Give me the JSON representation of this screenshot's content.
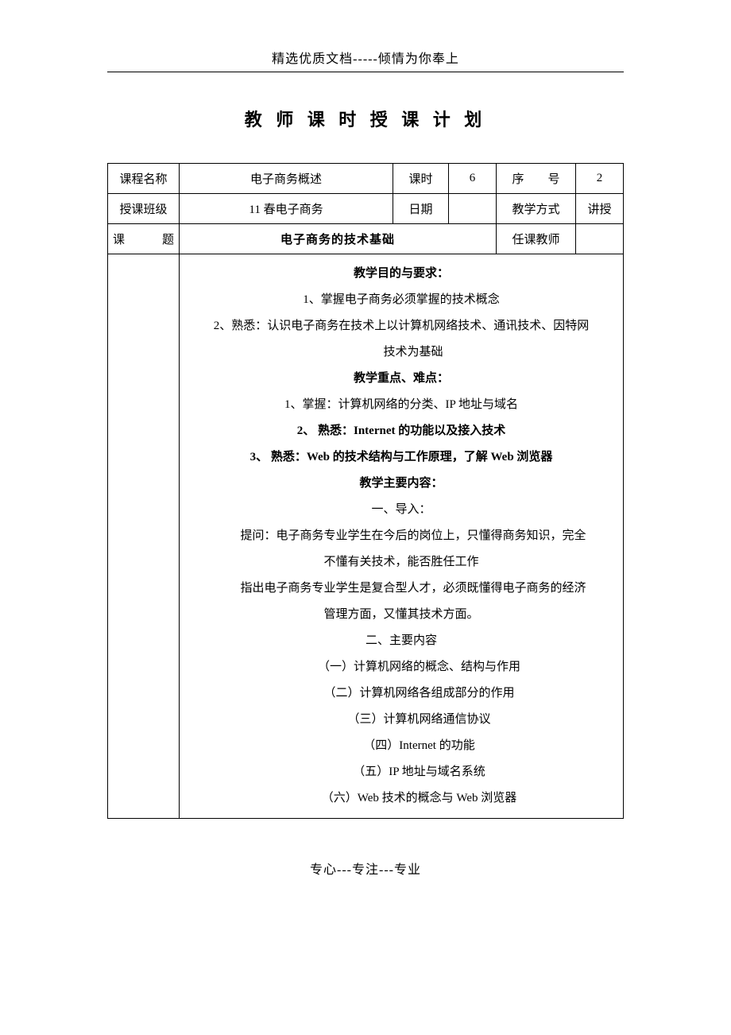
{
  "header": "精选优质文档-----倾情为你奉上",
  "title": "教 师 课 时 授 课 计 划",
  "row1": {
    "courseNameLabel": "课程名称",
    "courseName": "电子商务概述",
    "hoursLabel": "课时",
    "hours": "6",
    "seqLabel": "序　　号",
    "seq": "2"
  },
  "row2": {
    "classLabel": "授课班级",
    "className": "11 春电子商务",
    "dateLabel": "日期",
    "date": "",
    "methodLabel": "教学方式",
    "method": "讲授"
  },
  "row3": {
    "topicLabel": "课　　题",
    "topic": "电子商务的技术基础",
    "teacherLabel": "任课教师",
    "teacher": ""
  },
  "content": {
    "sec1Title": "教学目的与要求：",
    "sec1Line1": "1、掌握电子商务必须掌握的技术概念",
    "sec1Line2a": "2、熟悉：认识电子商务在技术上以计算机网络技术、通讯技术、因特网",
    "sec1Line2b": "技术为基础",
    "sec2Title": "教学重点、难点：",
    "sec2Line1": "1、掌握：计算机网络的分类、IP 地址与域名",
    "sec2Line2": "2、 熟悉：Internet 的功能以及接入技术",
    "sec2Line3": "3、 熟悉：Web 的技术结构与工作原理，了解 Web 浏览器",
    "sec3Title": "教学主要内容：",
    "sec3Intro": "一、导入：",
    "sec3P1a": "提问：电子商务专业学生在今后的岗位上，只懂得商务知识，完全",
    "sec3P1b": "不懂有关技术，能否胜任工作",
    "sec3P2a": "指出电子商务专业学生是复合型人才，必须既懂得电子商务的经济",
    "sec3P2b": "管理方面，又懂其技术方面。",
    "sec3Main": "二、主要内容",
    "sec3Item1": "（一）计算机网络的概念、结构与作用",
    "sec3Item2": "（二）计算机网络各组成部分的作用",
    "sec3Item3": "（三）计算机网络通信协议",
    "sec3Item4": "（四）Internet 的功能",
    "sec3Item5": "（五）IP 地址与域名系统",
    "sec3Item6": "（六）Web 技术的概念与 Web 浏览器"
  },
  "footer": "专心---专注---专业"
}
